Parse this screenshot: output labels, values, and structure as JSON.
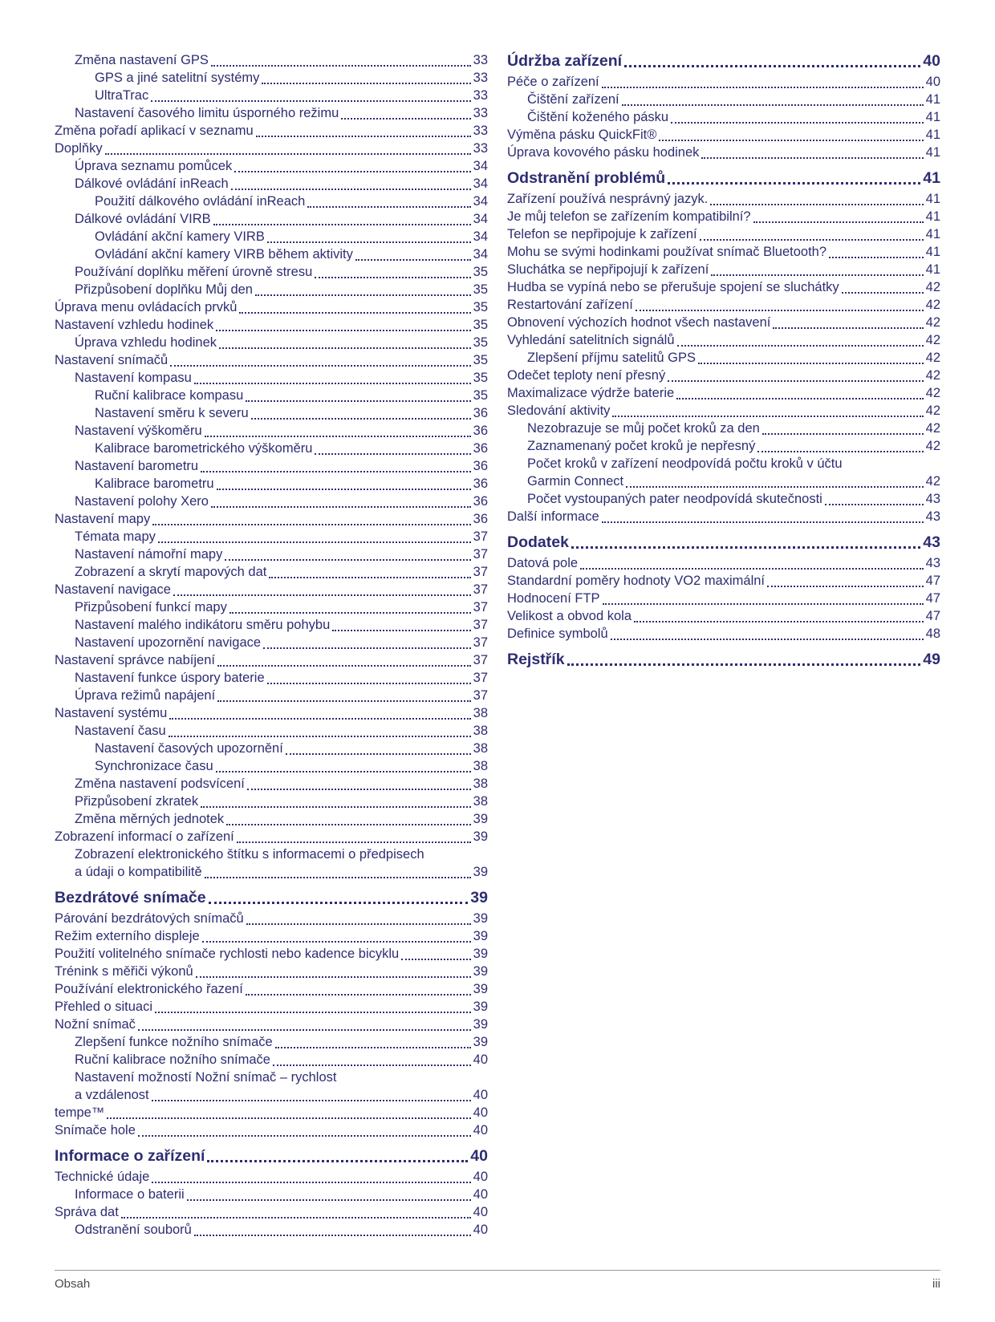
{
  "colors": {
    "toc_text": "#2d2d73",
    "footer_text": "#4a4a4a",
    "footer_rule": "#9a9a9a"
  },
  "footer": {
    "left": "Obsah",
    "right": "iii"
  },
  "toc": {
    "left": [
      {
        "t": "Změna nastavení GPS",
        "p": "33",
        "i": 1
      },
      {
        "t": "GPS a jiné satelitní systémy",
        "p": "33",
        "i": 2
      },
      {
        "t": "UltraTrac",
        "p": "33",
        "i": 2
      },
      {
        "t": "Nastavení časového limitu úsporného režimu",
        "p": "33",
        "i": 1
      },
      {
        "t": "Změna pořadí aplikací v seznamu",
        "p": "33",
        "i": 0
      },
      {
        "t": "Doplňky",
        "p": "33",
        "i": 0
      },
      {
        "t": "Úprava seznamu pomůcek",
        "p": "34",
        "i": 1
      },
      {
        "t": "Dálkové ovládání inReach",
        "p": "34",
        "i": 1
      },
      {
        "t": "Použití dálkového ovládání inReach",
        "p": "34",
        "i": 2
      },
      {
        "t": "Dálkové ovládání VIRB",
        "p": "34",
        "i": 1
      },
      {
        "t": "Ovládání akční kamery VIRB",
        "p": "34",
        "i": 2
      },
      {
        "t": "Ovládání akční kamery VIRB během aktivity",
        "p": "34",
        "i": 2
      },
      {
        "t": "Používání doplňku měření úrovně stresu",
        "p": "35",
        "i": 1
      },
      {
        "t": "Přizpůsobení doplňku Můj den",
        "p": "35",
        "i": 1
      },
      {
        "t": "Úprava menu ovládacích prvků",
        "p": "35",
        "i": 0
      },
      {
        "t": "Nastavení vzhledu hodinek",
        "p": "35",
        "i": 0
      },
      {
        "t": "Úprava vzhledu hodinek",
        "p": "35",
        "i": 1
      },
      {
        "t": "Nastavení snímačů",
        "p": "35",
        "i": 0
      },
      {
        "t": "Nastavení kompasu",
        "p": "35",
        "i": 1
      },
      {
        "t": "Ruční kalibrace kompasu",
        "p": "35",
        "i": 2
      },
      {
        "t": "Nastavení směru k severu",
        "p": "36",
        "i": 2
      },
      {
        "t": "Nastavení výškoměru",
        "p": "36",
        "i": 1
      },
      {
        "t": "Kalibrace barometrického výškoměru",
        "p": "36",
        "i": 2
      },
      {
        "t": "Nastavení barometru",
        "p": "36",
        "i": 1
      },
      {
        "t": "Kalibrace barometru",
        "p": "36",
        "i": 2
      },
      {
        "t": "Nastavení polohy Xero",
        "p": "36",
        "i": 1
      },
      {
        "t": "Nastavení mapy",
        "p": "36",
        "i": 0
      },
      {
        "t": "Témata mapy",
        "p": "37",
        "i": 1
      },
      {
        "t": "Nastavení námořní mapy",
        "p": "37",
        "i": 1
      },
      {
        "t": "Zobrazení a skrytí mapových dat",
        "p": "37",
        "i": 1
      },
      {
        "t": "Nastavení navigace",
        "p": "37",
        "i": 0
      },
      {
        "t": "Přizpůsobení funkcí mapy",
        "p": "37",
        "i": 1
      },
      {
        "t": "Nastavení malého indikátoru směru pohybu",
        "p": "37",
        "i": 1
      },
      {
        "t": "Nastavení upozornění navigace",
        "p": "37",
        "i": 1
      },
      {
        "t": "Nastavení správce nabíjení",
        "p": "37",
        "i": 0
      },
      {
        "t": "Nastavení funkce úspory baterie",
        "p": "37",
        "i": 1
      },
      {
        "t": "Úprava režimů napájení",
        "p": "37",
        "i": 1
      },
      {
        "t": "Nastavení systému",
        "p": "38",
        "i": 0
      },
      {
        "t": "Nastavení času",
        "p": "38",
        "i": 1
      },
      {
        "t": "Nastavení časových upozornění",
        "p": "38",
        "i": 2
      },
      {
        "t": "Synchronizace času",
        "p": "38",
        "i": 2
      },
      {
        "t": "Změna nastavení podsvícení",
        "p": "38",
        "i": 1
      },
      {
        "t": "Přizpůsobení zkratek",
        "p": "38",
        "i": 1
      },
      {
        "t": "Změna měrných jednotek",
        "p": "39",
        "i": 1
      },
      {
        "t": "Zobrazení informací o zařízení",
        "p": "39",
        "i": 0
      },
      {
        "t": "Zobrazení elektronického štítku s informacemi o předpisech",
        "t2": "a údaji o kompatibilitě",
        "p": "39",
        "i": 1
      },
      {
        "t": "Bezdrátové snímače",
        "p": "39",
        "i": 0,
        "h": true
      },
      {
        "t": "Párování bezdrátových snímačů",
        "p": "39",
        "i": 0
      },
      {
        "t": "Režim externího displeje",
        "p": "39",
        "i": 0
      },
      {
        "t": "Použití volitelného snímače rychlosti nebo kadence bicyklu",
        "p": "39",
        "i": 0
      },
      {
        "t": "Trénink s měřiči výkonů",
        "p": "39",
        "i": 0
      },
      {
        "t": "Používání elektronického řazení",
        "p": "39",
        "i": 0
      },
      {
        "t": "Přehled o situaci",
        "p": "39",
        "i": 0
      },
      {
        "t": "Nožní snímač",
        "p": "39",
        "i": 0
      },
      {
        "t": "Zlepšení funkce nožního snímače",
        "p": "39",
        "i": 1
      },
      {
        "t": "Ruční kalibrace nožního snímače",
        "p": "40",
        "i": 1
      },
      {
        "t": "Nastavení možností Nožní snímač – rychlost",
        "t2": "a vzdálenost",
        "p": "40",
        "i": 1
      },
      {
        "t": "tempe™",
        "p": "40",
        "i": 0
      },
      {
        "t": "Snímače hole",
        "p": "40",
        "i": 0
      },
      {
        "t": "Informace o zařízení",
        "p": "40",
        "i": 0,
        "h": true
      },
      {
        "t": "Technické údaje",
        "p": "40",
        "i": 0
      },
      {
        "t": "Informace o baterii",
        "p": "40",
        "i": 1
      },
      {
        "t": "Správa dat",
        "p": "40",
        "i": 0
      },
      {
        "t": "Odstranění souborů",
        "p": "40",
        "i": 1
      }
    ],
    "right": [
      {
        "t": "Údržba zařízení",
        "p": "40",
        "i": 0,
        "h": true
      },
      {
        "t": "Péče o zařízení",
        "p": "40",
        "i": 0
      },
      {
        "t": "Čištění zařízení",
        "p": "41",
        "i": 1
      },
      {
        "t": "Čištění koženého pásku",
        "p": "41",
        "i": 1
      },
      {
        "t": "Výměna pásku QuickFit®",
        "p": "41",
        "i": 0
      },
      {
        "t": "Úprava kovového pásku hodinek",
        "p": "41",
        "i": 0
      },
      {
        "t": "Odstranění problémů",
        "p": "41",
        "i": 0,
        "h": true
      },
      {
        "t": "Zařízení používá nesprávný jazyk.",
        "p": "41",
        "i": 0
      },
      {
        "t": "Je můj telefon se zařízením kompatibilní?",
        "p": "41",
        "i": 0
      },
      {
        "t": "Telefon se nepřipojuje k zařízení",
        "p": "41",
        "i": 0
      },
      {
        "t": "Mohu se svými hodinkami používat snímač Bluetooth?",
        "p": "41",
        "i": 0
      },
      {
        "t": "Sluchátka se nepřipojují k zařízení",
        "p": "41",
        "i": 0
      },
      {
        "t": "Hudba se vypíná nebo se přerušuje spojení se sluchátky",
        "p": "42",
        "i": 0
      },
      {
        "t": "Restartování zařízení",
        "p": "42",
        "i": 0
      },
      {
        "t": "Obnovení výchozích hodnot všech nastavení",
        "p": "42",
        "i": 0
      },
      {
        "t": "Vyhledání satelitních signálů",
        "p": "42",
        "i": 0
      },
      {
        "t": "Zlepšení příjmu satelitů GPS",
        "p": "42",
        "i": 1
      },
      {
        "t": "Odečet teploty není přesný",
        "p": "42",
        "i": 0
      },
      {
        "t": "Maximalizace výdrže baterie",
        "p": "42",
        "i": 0
      },
      {
        "t": "Sledování aktivity",
        "p": "42",
        "i": 0
      },
      {
        "t": "Nezobrazuje se můj počet kroků za den",
        "p": "42",
        "i": 1
      },
      {
        "t": "Zaznamenaný počet kroků je nepřesný",
        "p": "42",
        "i": 1
      },
      {
        "t": "Počet kroků v zařízení neodpovídá počtu kroků v účtu",
        "t2": "Garmin Connect",
        "p": "42",
        "i": 1
      },
      {
        "t": "Počet vystoupaných pater neodpovídá skutečnosti",
        "p": "43",
        "i": 1
      },
      {
        "t": "Další informace",
        "p": "43",
        "i": 0
      },
      {
        "t": "Dodatek",
        "p": "43",
        "i": 0,
        "h": true
      },
      {
        "t": "Datová pole",
        "p": "43",
        "i": 0
      },
      {
        "t": "Standardní poměry hodnoty VO2 maximální",
        "p": "47",
        "i": 0
      },
      {
        "t": "Hodnocení FTP",
        "p": "47",
        "i": 0
      },
      {
        "t": "Velikost a obvod kola",
        "p": "47",
        "i": 0
      },
      {
        "t": "Definice symbolů",
        "p": "48",
        "i": 0
      },
      {
        "t": "Rejstřík",
        "p": "49",
        "i": 0,
        "h": true
      }
    ]
  }
}
